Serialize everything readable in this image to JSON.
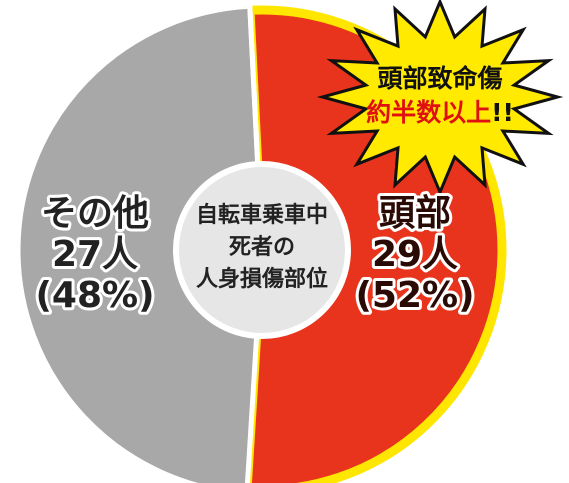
{
  "chart_data": {
    "type": "pie",
    "categories": [
      "頭部",
      "その他"
    ],
    "values": [
      29,
      27
    ],
    "value_labels": [
      "29人",
      "27人"
    ],
    "percent_labels": [
      "(52%)",
      "(48%)"
    ],
    "colors": [
      "#e8341c",
      "#a8a8a8"
    ],
    "center_label": [
      "自転車乗車中",
      "死者の",
      "人身損傷部位"
    ],
    "annotation": {
      "line1": "頭部致命傷",
      "line2": "約半数以上",
      "suffix": "!!"
    }
  }
}
